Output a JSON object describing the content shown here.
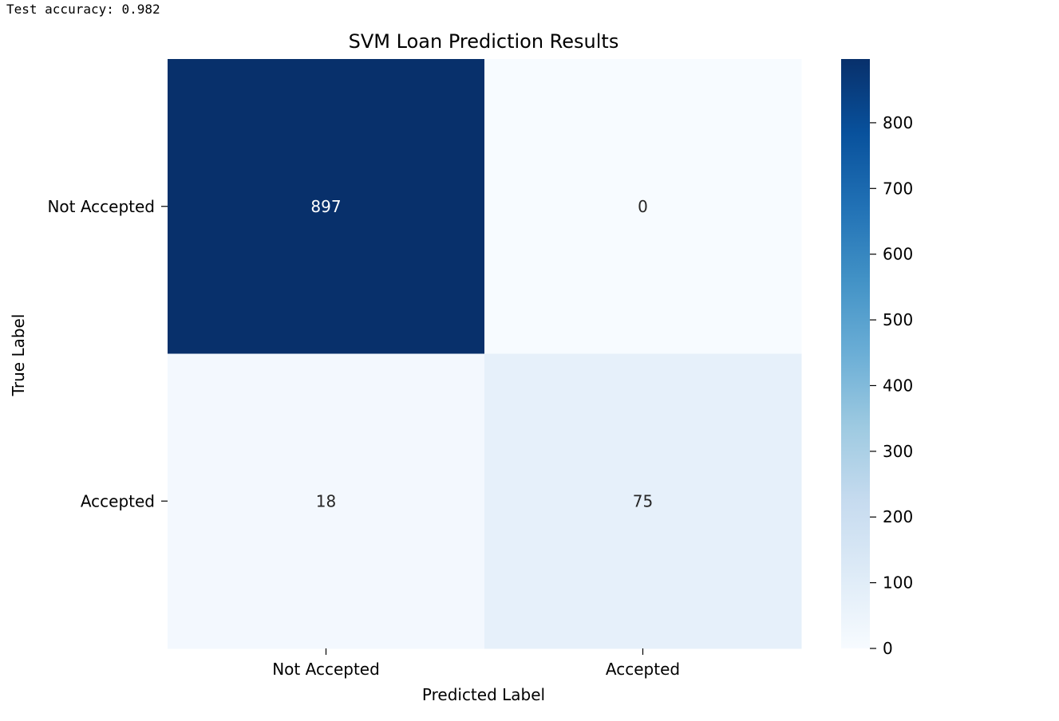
{
  "output": {
    "accuracy_line": "Test accuracy: 0.982"
  },
  "chart_data": {
    "type": "heatmap",
    "title": "SVM Loan Prediction Results",
    "xlabel": "Predicted Label",
    "ylabel": "True Label",
    "x_categories": [
      "Not Accepted",
      "Accepted"
    ],
    "y_categories": [
      "Not Accepted",
      "Accepted"
    ],
    "values": [
      [
        897,
        0
      ],
      [
        18,
        75
      ]
    ],
    "colormap": "Blues",
    "colorbar": {
      "range": [
        0,
        897
      ],
      "ticks": [
        0,
        100,
        200,
        300,
        400,
        500,
        600,
        700,
        800
      ]
    },
    "grid": false,
    "legend": "colorbar-right"
  }
}
